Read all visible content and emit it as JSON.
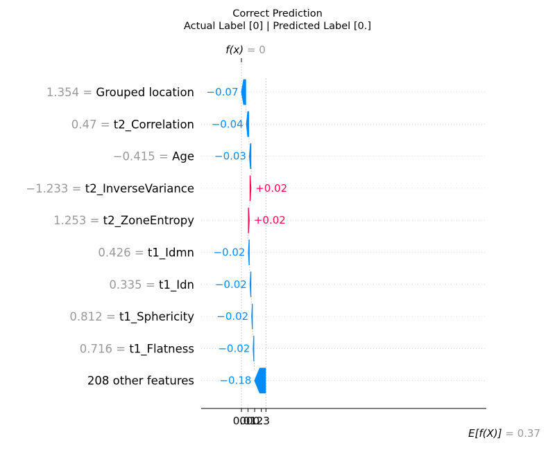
{
  "title_line1": "Correct Prediction",
  "title_line2": "Actual Label [0] | Predicted Label [0.]",
  "fx_label": "f(x)",
  "fx_value": "= 0",
  "efx_label": "E[f(X)]",
  "efx_value": "= 0.37",
  "colors": {
    "negative": "#008bfb",
    "positive": "#ff0051",
    "muted": "#999999"
  },
  "chart_data": {
    "type": "waterfall",
    "base_value": 0.37,
    "output_value": 0,
    "xlim": [
      -0.06,
      0.37
    ],
    "xticks": [
      0.0,
      0.1,
      0.2,
      0.3
    ],
    "xtick_labels": [
      "0.0",
      "0.1",
      "0.2",
      "0.3"
    ],
    "features": [
      {
        "value": "1.354",
        "name": "Grouped location",
        "contribution": -0.075,
        "label": "−0.07"
      },
      {
        "value": "0.47",
        "name": "t2_Correlation",
        "contribution": -0.045,
        "label": "−0.04"
      },
      {
        "value": "−0.415",
        "name": "Age",
        "contribution": -0.034,
        "label": "−0.03"
      },
      {
        "value": "−1.233",
        "name": "t2_InverseVariance",
        "contribution": 0.025,
        "label": "+0.02"
      },
      {
        "value": "1.253",
        "name": "t2_ZoneEntropy",
        "contribution": 0.025,
        "label": "+0.02"
      },
      {
        "value": "0.426",
        "name": "t1_Idmn",
        "contribution": -0.025,
        "label": "−0.02"
      },
      {
        "value": "0.335",
        "name": "t1_Idn",
        "contribution": -0.025,
        "label": "−0.02"
      },
      {
        "value": "0.812",
        "name": "t1_Sphericity",
        "contribution": -0.022,
        "label": "−0.02"
      },
      {
        "value": "0.716",
        "name": "t1_Flatness",
        "contribution": -0.022,
        "label": "−0.02"
      },
      {
        "value": "",
        "name": "208 other features",
        "contribution": -0.177,
        "label": "−0.18"
      }
    ]
  }
}
